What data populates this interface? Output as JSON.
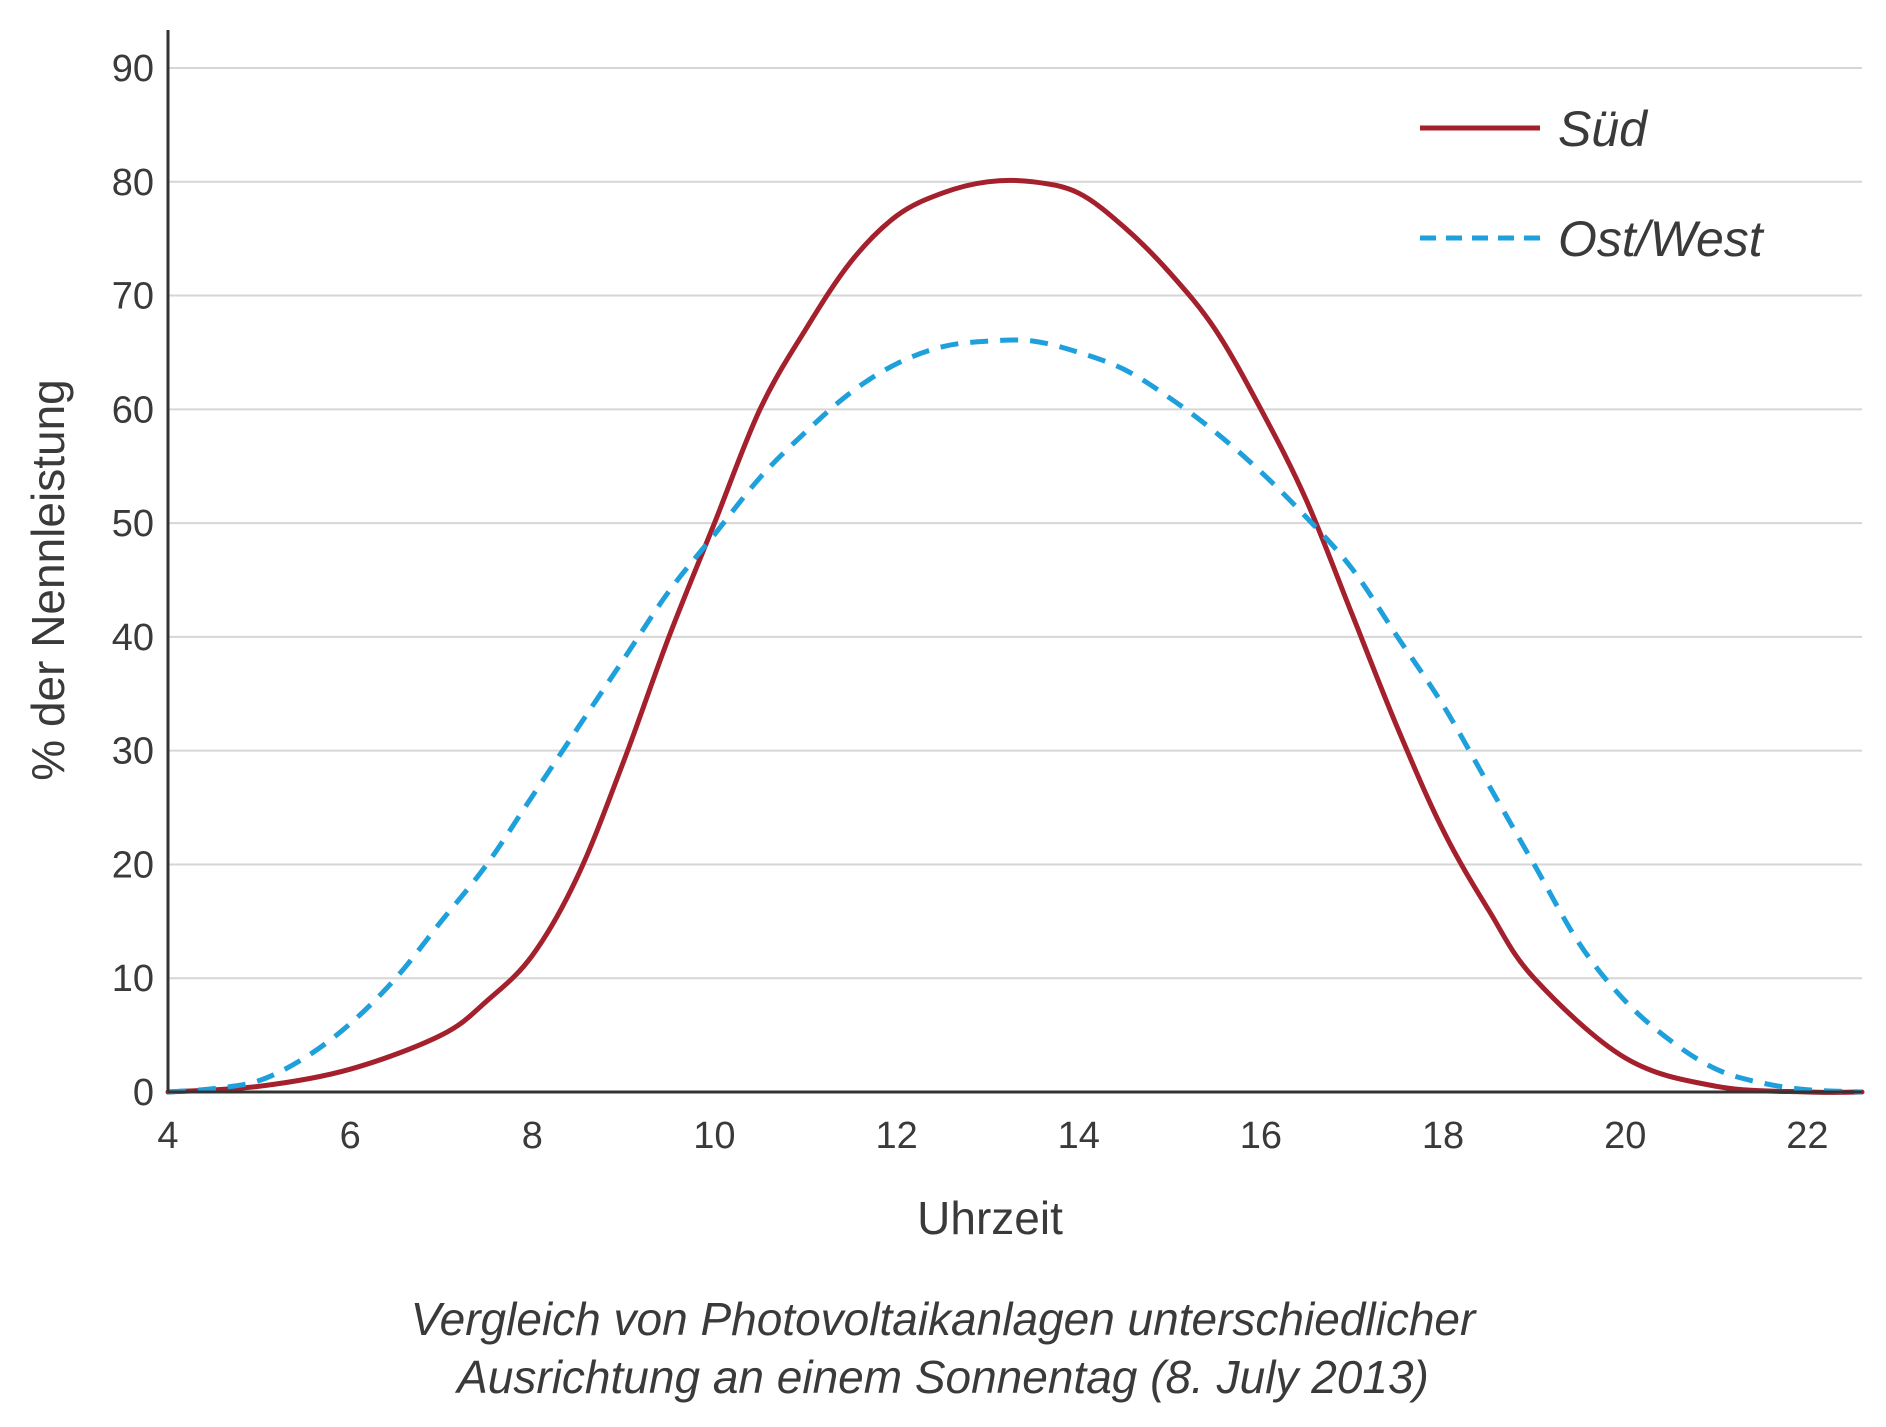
{
  "chart_data": {
    "type": "line",
    "xlabel": "Uhrzeit",
    "ylabel": "% der Nennleistung",
    "xlim": [
      4,
      22.6
    ],
    "ylim": [
      0,
      90
    ],
    "xticks": [
      4,
      6,
      8,
      10,
      12,
      14,
      16,
      18,
      20,
      22
    ],
    "yticks": [
      0,
      10,
      20,
      30,
      40,
      50,
      60,
      70,
      80,
      90
    ],
    "grid": true,
    "legend_position": "top-right",
    "caption_lines": [
      "Vergleich von Photovoltaikanlagen unterschiedlicher",
      "Ausrichtung an einem Sonnentag (8. July 2013)"
    ],
    "series": [
      {
        "name": "Süd",
        "color": "#a3202c",
        "style": "solid",
        "x": [
          4,
          5,
          6,
          7,
          7.5,
          8,
          8.5,
          9,
          9.5,
          10,
          10.5,
          11,
          11.5,
          12,
          12.5,
          13,
          13.5,
          14,
          14.5,
          15,
          15.5,
          16,
          16.5,
          17,
          17.5,
          18,
          18.5,
          19,
          20,
          21,
          22,
          22.6
        ],
        "y": [
          0,
          0.5,
          2,
          5,
          8,
          12,
          19,
          29,
          40,
          50,
          60,
          67,
          73,
          77,
          79,
          80,
          80,
          79,
          76,
          72,
          67,
          60,
          52,
          42,
          32,
          23,
          16,
          10,
          3,
          0.5,
          0,
          0
        ]
      },
      {
        "name": "Ost/West",
        "color": "#1ea0dc",
        "style": "dashed",
        "x": [
          4,
          4.5,
          5,
          5.5,
          6,
          6.5,
          7,
          7.5,
          8,
          8.5,
          9,
          9.5,
          10,
          10.5,
          11,
          11.5,
          12,
          12.5,
          13,
          13.5,
          14,
          14.5,
          15,
          15.5,
          16,
          16.5,
          17,
          17.5,
          18,
          18.5,
          19,
          19.5,
          20,
          20.5,
          21,
          21.5,
          22,
          22.6
        ],
        "y": [
          0,
          0.3,
          1,
          3,
          6,
          10,
          15,
          20,
          26,
          32,
          38,
          44,
          49,
          54,
          58,
          61.5,
          64,
          65.5,
          66,
          66,
          65,
          63.5,
          61,
          58,
          54.5,
          50.5,
          46,
          40,
          34,
          27,
          20,
          13,
          8,
          4.5,
          2,
          0.8,
          0.2,
          0
        ]
      }
    ]
  }
}
